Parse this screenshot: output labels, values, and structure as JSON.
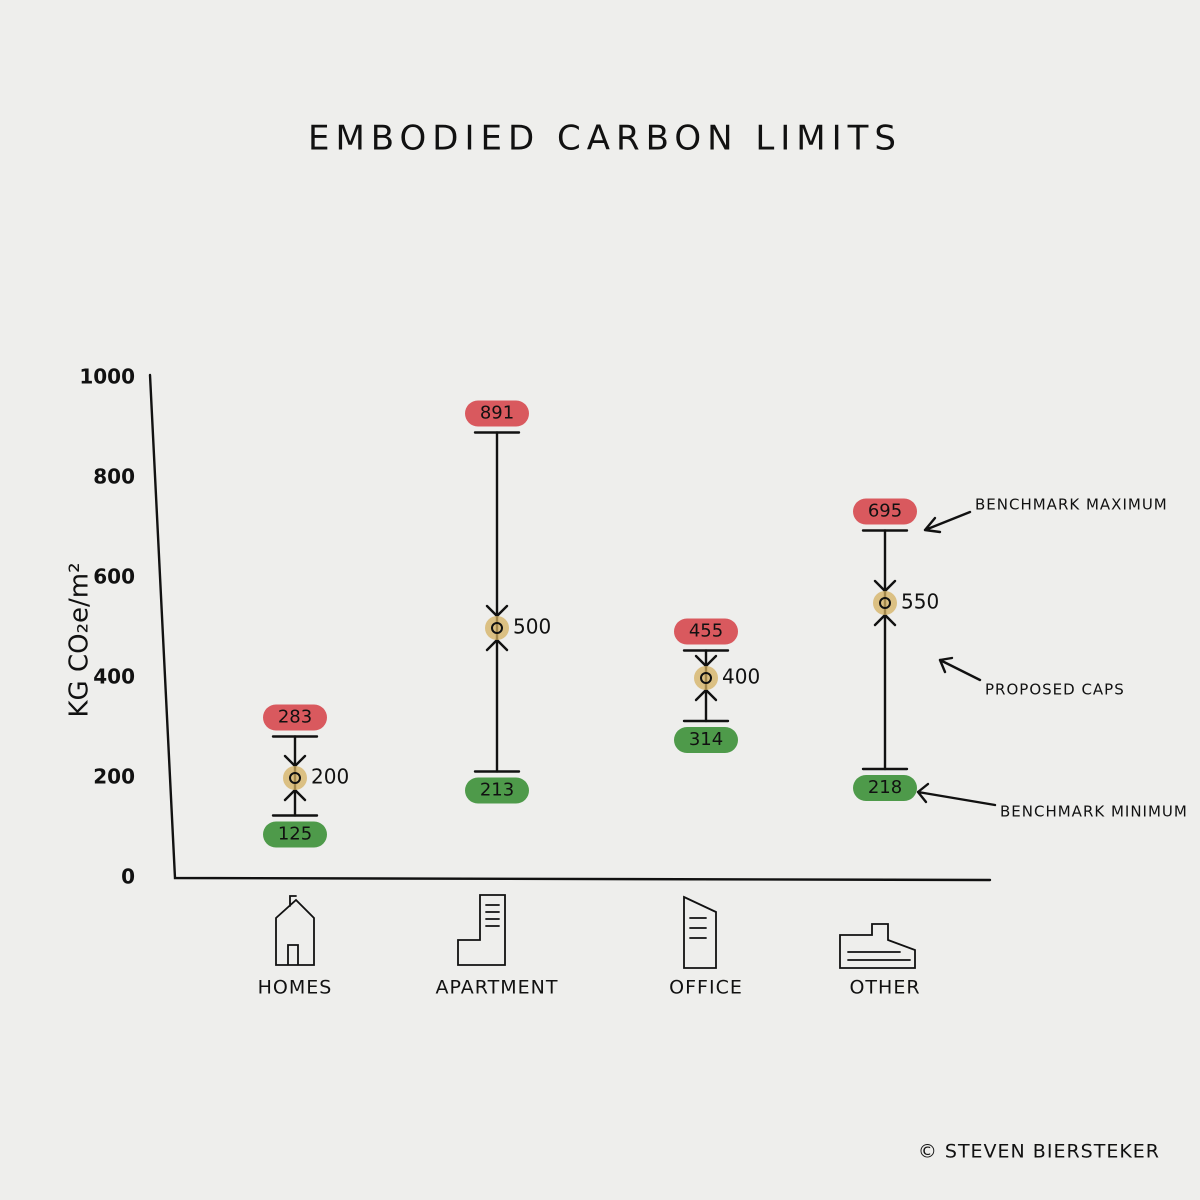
{
  "chart_data": {
    "type": "range",
    "title": "EMBODIED CARBON LIMITS",
    "y_label": "KG CO₂e/m²",
    "categories": [
      "HOMES",
      "APARTMENT",
      "OFFICE",
      "OTHER"
    ],
    "series": [
      {
        "name": "BENCHMARK MAXIMUM",
        "color": "#d9595e",
        "values": [
          283,
          891,
          455,
          695
        ]
      },
      {
        "name": "PROPOSED CAPS",
        "color": "#d4b060",
        "values": [
          200,
          500,
          400,
          550
        ]
      },
      {
        "name": "BENCHMARK MINIMUM",
        "color": "#4e9a4a",
        "values": [
          125,
          213,
          314,
          218
        ]
      }
    ],
    "ylim": [
      0,
      1000
    ],
    "yticks": [
      0,
      200,
      400,
      600,
      800,
      1000
    ],
    "credit": "© STEVEN BIERSTEKER"
  }
}
